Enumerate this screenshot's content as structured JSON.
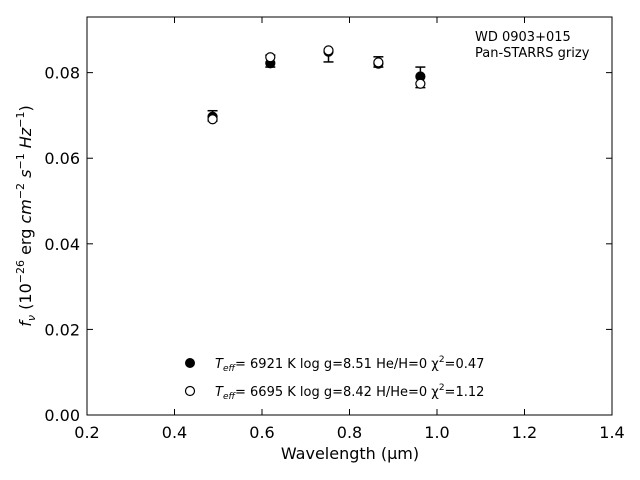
{
  "chart_data": {
    "type": "scatter",
    "title": "",
    "annotation": [
      "WD 0903+015",
      "Pan-STARRS grizy"
    ],
    "xlabel": "Wavelength (μm)",
    "ylabel": "f_ν (10^-26 erg cm^-2 s^-1 Hz^-1)",
    "xlim": [
      0.2,
      1.4
    ],
    "ylim": [
      0.0,
      0.093
    ],
    "xticks": [
      "0.2",
      "0.4",
      "0.6",
      "0.8",
      "1.0",
      "1.2",
      "1.4"
    ],
    "yticks": [
      "0.00",
      "0.02",
      "0.04",
      "0.06",
      "0.08"
    ],
    "grid": false,
    "observed": {
      "x": [
        0.487,
        0.619,
        0.752,
        0.866,
        0.962
      ],
      "y": [
        0.0699,
        0.0827,
        0.0837,
        0.0825,
        0.0789
      ],
      "err": [
        0.0012,
        0.0014,
        0.0012,
        0.0012,
        0.0024
      ]
    },
    "series": [
      {
        "name_parts": [
          "T",
          "eff",
          "=  6921 K  log g=8.51  He/H=0  χ",
          "2",
          "=0.47"
        ],
        "marker": "filled",
        "x": [
          0.487,
          0.619,
          0.752,
          0.866,
          0.962
        ],
        "y": [
          0.0697,
          0.0822,
          0.0849,
          0.0821,
          0.0791
        ]
      },
      {
        "name_parts": [
          "T",
          "eff",
          "=  6695 K  log g=8.42  H/He=0  χ",
          "2",
          "=1.12"
        ],
        "marker": "open",
        "x": [
          0.487,
          0.619,
          0.752,
          0.866,
          0.962
        ],
        "y": [
          0.0691,
          0.0836,
          0.0852,
          0.0824,
          0.0774
        ]
      }
    ]
  }
}
